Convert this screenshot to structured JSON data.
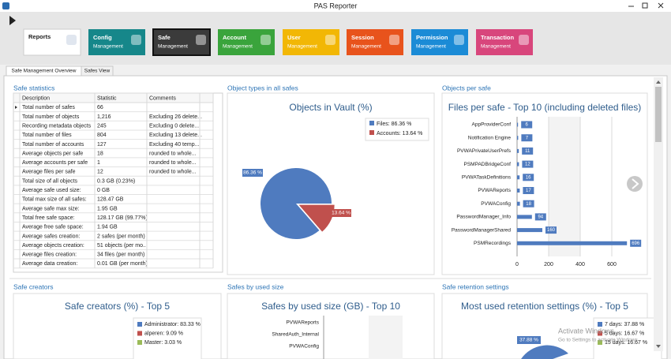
{
  "window": {
    "title": "PAS Reporter"
  },
  "toolbar": [
    {
      "title": "Reports",
      "color": "#ffffff"
    },
    {
      "title": "Config",
      "subtitle": "Management",
      "color": "#16878a"
    },
    {
      "title": "Safe",
      "subtitle": "Management",
      "color": "#3b3b3b"
    },
    {
      "title": "Account",
      "subtitle": "Management",
      "color": "#3aa43c"
    },
    {
      "title": "User",
      "subtitle": "Management",
      "color": "#f2b705"
    },
    {
      "title": "Session",
      "subtitle": "Management",
      "color": "#e8531c"
    },
    {
      "title": "Permission",
      "subtitle": "Management",
      "color": "#1b8bd6"
    },
    {
      "title": "Transaction",
      "subtitle": "Management",
      "color": "#d8467c"
    }
  ],
  "tabs": [
    "Safe Management Overview",
    "Safes View"
  ],
  "safe_statistics": {
    "heading": "Safe statistics",
    "columns": [
      "Description",
      "Statistic",
      "Comments"
    ],
    "rows": [
      [
        "Total number of safes",
        "66"
      ],
      [
        "Total number of objects",
        "1,216",
        "Excluding 26 delete..."
      ],
      [
        "Recording metadata objects",
        "245",
        "Excluding 0 delete..."
      ],
      [
        "Total number of files",
        "804",
        "Excluding 13 delete..."
      ],
      [
        "Total number of accounts",
        "127",
        "Excluding 40 temp..."
      ],
      [
        "Average objects per safe",
        "18",
        "rounded to whole..."
      ],
      [
        "Average accounts per safe",
        "1",
        "rounded to whole..."
      ],
      [
        "Average files per safe",
        "12",
        "rounded to whole..."
      ],
      [
        "Total size of all objects",
        "0.3 GB (0.23%)"
      ],
      [
        "Average safe used size:",
        "0 GB"
      ],
      [
        "Total max size of all safes:",
        "128.47 GB"
      ],
      [
        "Average safe max size:",
        "1.95 GB"
      ],
      [
        "Total free safe space:",
        "128.17 GB (99.77%)"
      ],
      [
        "Average free safe space:",
        "1.94 GB"
      ],
      [
        "Average safes creation:",
        "2 safes (per month)"
      ],
      [
        "Average objects creation:",
        "51 objects (per mo..."
      ],
      [
        "Average files creation:",
        "34 files (per month)"
      ],
      [
        "Average data creation:",
        "0.01 GB (per month)"
      ]
    ]
  },
  "chart_data": [
    {
      "type": "pie",
      "section": "Object types in all safes",
      "title": "Objects in Vault (%)",
      "labels": [
        "Files: 86.36 %",
        "Accounts: 13.64 %"
      ],
      "values": [
        86.36,
        13.64
      ],
      "value_labels": [
        "86.36 %",
        "13.64 %"
      ],
      "colors": [
        "#4f7bbf",
        "#c0504d"
      ]
    },
    {
      "type": "hbar",
      "section": "Objects per safe",
      "title": "Files per safe - Top 10 (including deleted files)",
      "categories": [
        "AppProviderConf",
        "Notification Engine",
        "PVWAPrivateUserPrefs",
        "PSMPADBridgeConf",
        "PVWATaskDefinitions",
        "PVWAReports",
        "PVWAConfig",
        "PasswordManager_Info",
        "PasswordManagerShared",
        "PSMRecordings"
      ],
      "values": [
        6,
        7,
        11,
        12,
        16,
        17,
        18,
        94,
        160,
        696
      ],
      "color": "#4f7bbf",
      "xlim": [
        0,
        800
      ],
      "xticks": [
        0,
        200,
        400,
        600
      ]
    },
    {
      "type": "legend",
      "section": "Safe creators",
      "title": "Safe creators (%) - Top 5",
      "labels": [
        "Administrator: 83.33 %",
        "alperen: 9.09 %",
        "Master: 3.03 %"
      ],
      "colors": [
        "#4f7bbf",
        "#c0504d",
        "#9bbb59"
      ]
    },
    {
      "type": "categories",
      "section": "Safes by used size",
      "title": "Safes by used size (GB) - Top 10",
      "categories": [
        "PVWAReports",
        "SharedAuth_Internal",
        "PVWAConfig"
      ]
    },
    {
      "type": "legend",
      "section": "Safe retention settings",
      "title": "Most used retention settings (%) - Top 5",
      "labels": [
        "7 days: 37.88 %",
        "5 days: 16.67 %",
        "15 days: 16.67 %"
      ],
      "colors": [
        "#4f7bbf",
        "#c0504d",
        "#9bbb59"
      ],
      "slice_label": "37.88 %"
    }
  ],
  "watermark": [
    "Activate Windows",
    "Go to Settings to activate Windows."
  ]
}
